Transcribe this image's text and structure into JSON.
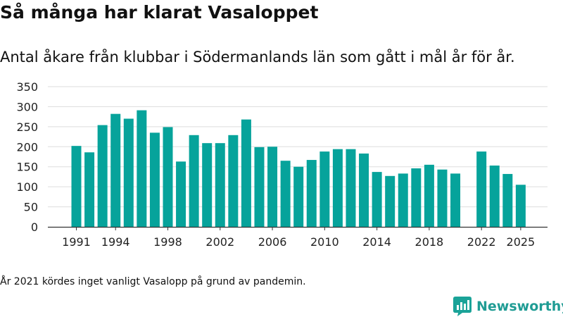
{
  "title": "Så många har klarat Vasaloppet",
  "subtitle": "Antal åkare från klubbar i Södermanlands län som gått i mål år för år.",
  "note": "År 2021 kördes inget vanligt Vasalopp på grund av pandemin.",
  "brand": {
    "name": "Newsworthy",
    "color": "#1aa398",
    "text_color": "#1f9c94"
  },
  "colors": {
    "bar": "#06a39b",
    "grid": "#dddddd",
    "axis": "#333333"
  },
  "chart_data": {
    "type": "bar",
    "title": "Så många har klarat Vasaloppet",
    "xlabel": "",
    "ylabel": "",
    "ylim": [
      0,
      350
    ],
    "yticks": [
      0,
      50,
      100,
      150,
      200,
      250,
      300,
      350
    ],
    "xticks": [
      1991,
      1994,
      1998,
      2002,
      2006,
      2010,
      2014,
      2018,
      2022,
      2025
    ],
    "grid": true,
    "categories": [
      1991,
      1992,
      1993,
      1994,
      1995,
      1996,
      1997,
      1998,
      1999,
      2000,
      2001,
      2002,
      2003,
      2004,
      2005,
      2006,
      2007,
      2008,
      2009,
      2010,
      2011,
      2012,
      2013,
      2014,
      2015,
      2016,
      2017,
      2018,
      2019,
      2020,
      2021,
      2022,
      2023,
      2024,
      2025
    ],
    "values": [
      202,
      186,
      254,
      282,
      270,
      291,
      235,
      249,
      163,
      229,
      209,
      209,
      229,
      268,
      199,
      200,
      165,
      150,
      167,
      188,
      194,
      194,
      183,
      137,
      127,
      133,
      146,
      155,
      143,
      133,
      null,
      188,
      153,
      132,
      105
    ]
  }
}
